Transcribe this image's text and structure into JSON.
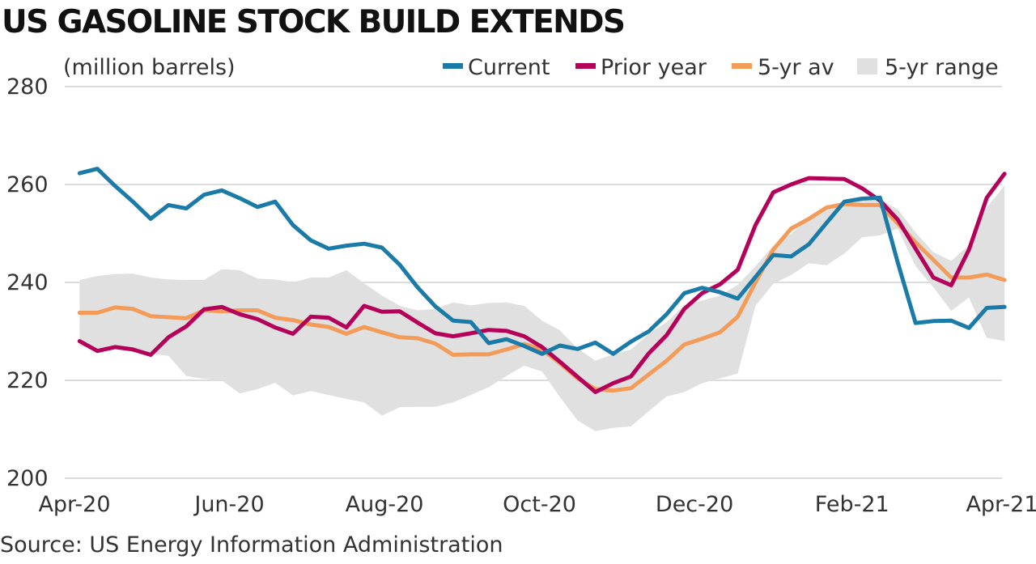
{
  "chart_data": {
    "type": "line",
    "title": "US GASOLINE STOCK BUILD EXTENDS",
    "ylabel": "(million barrels)",
    "ylim": [
      200,
      280
    ],
    "yticks": [
      200,
      220,
      240,
      260,
      280
    ],
    "xticks": [
      "Apr-20",
      "Jun-20",
      "Aug-20",
      "Oct-20",
      "Dec-20",
      "Feb-21",
      "Apr-21"
    ],
    "grid": true,
    "legend": "top-right",
    "source": "Source: US Energy Information Administration",
    "legend_items": [
      {
        "label": "Current",
        "color": "#1a7aa8",
        "kind": "line"
      },
      {
        "label": "Prior year",
        "color": "#b5005a",
        "kind": "line"
      },
      {
        "label": "5-yr av",
        "color": "#f39c5a",
        "kind": "line"
      },
      {
        "label": "5-yr range",
        "color": "#e0e0e0",
        "kind": "box"
      }
    ],
    "x_week_start": "2020-04-03",
    "series": [
      {
        "name": "Current",
        "color": "#1a7aa8",
        "values": [
          262.3,
          263.2,
          259.7,
          256.5,
          253.0,
          255.8,
          255.1,
          257.9,
          258.8,
          257.2,
          255.4,
          256.5,
          251.7,
          248.6,
          246.9,
          247.5,
          247.9,
          247.1,
          243.6,
          239.0,
          235.1,
          232.2,
          231.9,
          227.6,
          228.4,
          227.0,
          225.4,
          227.1,
          226.4,
          227.7,
          225.4,
          227.9,
          230.0,
          233.5,
          237.8,
          238.9,
          238.0,
          236.7,
          241.1,
          245.6,
          245.3,
          247.8,
          252.2,
          256.5,
          257.1,
          257.3,
          244.0,
          231.7,
          232.1,
          232.2,
          230.7,
          234.8,
          235.0
        ]
      },
      {
        "name": "Prior year",
        "color": "#b5005a",
        "values": [
          228.0,
          226.0,
          226.8,
          226.3,
          225.2,
          228.8,
          231.0,
          234.5,
          235.0,
          233.5,
          232.5,
          230.8,
          229.5,
          233.0,
          232.8,
          230.8,
          235.2,
          234.0,
          234.1,
          231.8,
          229.6,
          229.0,
          229.6,
          230.3,
          230.1,
          229.0,
          226.8,
          223.8,
          220.7,
          217.6,
          219.4,
          220.8,
          225.5,
          229.2,
          234.6,
          237.8,
          239.6,
          242.6,
          251.7,
          258.4,
          260.0,
          261.3,
          261.2,
          261.1,
          259.2,
          256.7,
          252.8,
          246.9,
          241.0,
          239.4,
          246.7,
          257.3,
          262.2
        ]
      },
      {
        "name": "5-yr av",
        "color": "#f39c5a",
        "values": [
          233.8,
          233.8,
          234.9,
          234.6,
          233.1,
          232.9,
          232.7,
          234.3,
          234.1,
          234.3,
          234.3,
          232.8,
          232.3,
          231.4,
          230.9,
          229.5,
          230.9,
          229.8,
          228.8,
          228.6,
          227.5,
          225.2,
          225.3,
          225.3,
          226.3,
          227.4,
          226.3,
          223.5,
          220.4,
          218.2,
          217.9,
          218.4,
          221.2,
          224.0,
          227.3,
          228.5,
          229.8,
          233.0,
          240.0,
          246.7,
          251.0,
          253.0,
          255.3,
          256.0,
          255.8,
          255.8,
          252.0,
          248.2,
          244.6,
          241.0,
          241.0,
          241.6,
          240.5
        ]
      },
      {
        "name": "5-yr range",
        "color": "#e0e0e0",
        "upper": [
          240.5,
          241.3,
          241.7,
          241.8,
          241.0,
          240.6,
          240.5,
          240.5,
          242.7,
          242.5,
          240.8,
          240.6,
          240.0,
          241.0,
          241.0,
          242.5,
          239.8,
          237.3,
          235.2,
          234.3,
          234.6,
          235.9,
          235.3,
          235.8,
          235.9,
          235.2,
          232.2,
          230.2,
          226.5,
          224.0,
          225.3,
          226.3,
          229.5,
          231.9,
          235.3,
          236.3,
          237.3,
          239.5,
          243.3,
          247.5,
          249.9,
          253.4,
          255.0,
          256.8,
          257.0,
          257.0,
          254.9,
          250.2,
          246.2,
          244.4,
          247.6,
          255.3,
          259.8
        ],
        "lower": [
          227.0,
          226.5,
          226.8,
          225.8,
          225.4,
          225.0,
          220.9,
          220.3,
          220.0,
          217.3,
          218.2,
          219.5,
          216.9,
          217.8,
          217.0,
          216.2,
          215.5,
          212.8,
          214.5,
          214.6,
          214.6,
          215.5,
          217.0,
          218.6,
          220.9,
          223.0,
          221.8,
          216.6,
          211.8,
          209.6,
          210.3,
          210.6,
          213.7,
          216.7,
          217.6,
          219.4,
          220.4,
          221.4,
          235.2,
          239.7,
          241.5,
          243.9,
          243.5,
          245.9,
          249.2,
          249.6,
          251.0,
          243.3,
          239.0,
          234.2,
          236.9,
          228.7,
          228.0
        ]
      }
    ]
  }
}
